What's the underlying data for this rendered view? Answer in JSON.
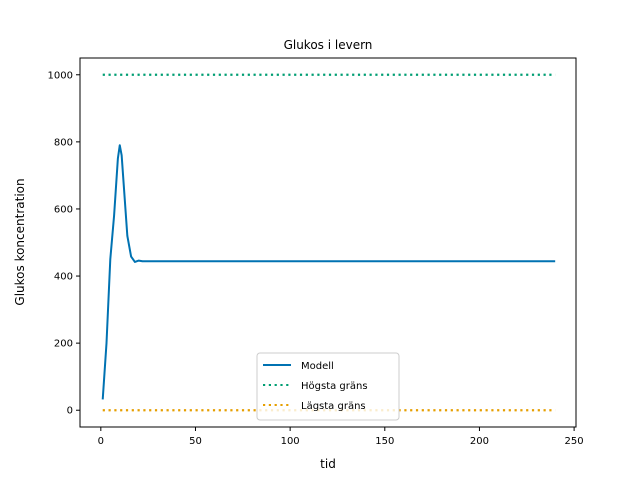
{
  "chart_data": {
    "type": "line",
    "title": "Glukos i levern",
    "xlabel": "tid",
    "ylabel": "Glukos koncentration",
    "xlim": [
      -11,
      251
    ],
    "ylim": [
      -50,
      1050
    ],
    "xticks": [
      0,
      50,
      100,
      150,
      200,
      250
    ],
    "yticks": [
      0,
      200,
      400,
      600,
      800,
      1000
    ],
    "grid": false,
    "legend_position": "lower center",
    "series": [
      {
        "name": "Modell",
        "color": "#0072b2",
        "style": "solid",
        "x": [
          1,
          3,
          5,
          7,
          9,
          10,
          11,
          12,
          14,
          16,
          18,
          20,
          22,
          25,
          30,
          40,
          60,
          100,
          150,
          200,
          240
        ],
        "y": [
          32,
          200,
          450,
          580,
          750,
          790,
          760,
          680,
          520,
          458,
          442,
          446,
          444,
          444,
          444,
          444,
          444,
          444,
          444,
          444,
          444
        ]
      },
      {
        "name": "Högsta gräns",
        "color": "#009e73",
        "style": "dotted",
        "x": [
          1,
          240
        ],
        "y": [
          1000,
          1000
        ]
      },
      {
        "name": "Lägsta gräns",
        "color": "#e69f00",
        "style": "dotted",
        "x": [
          1,
          240
        ],
        "y": [
          0,
          0
        ]
      }
    ]
  }
}
